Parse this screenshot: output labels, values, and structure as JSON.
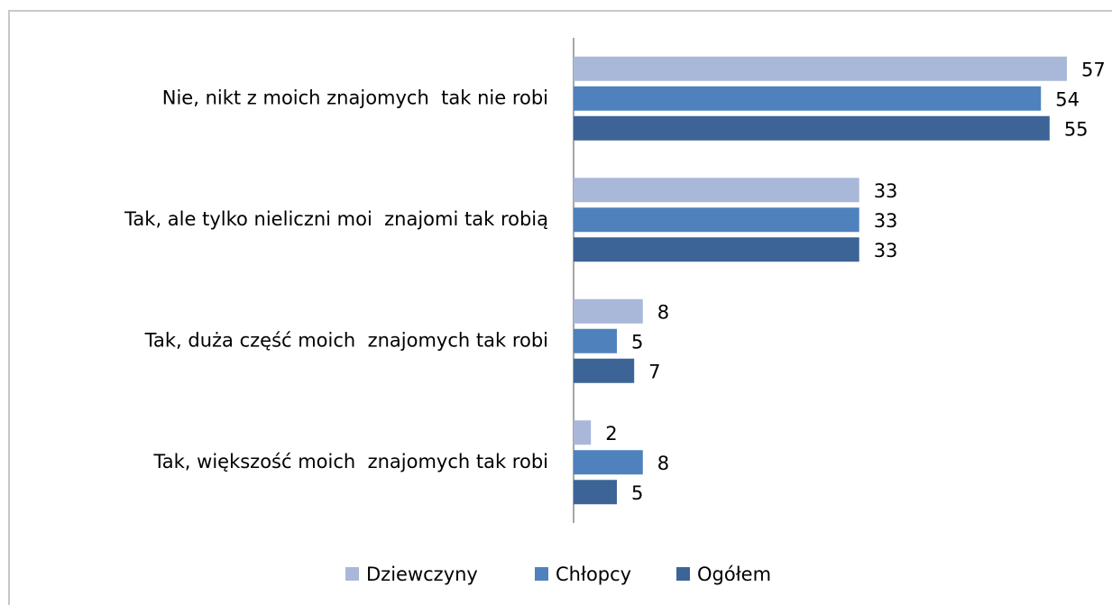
{
  "chart_data": {
    "type": "bar",
    "orientation": "horizontal",
    "categories": [
      "Nie, nikt z moich znajomych  tak nie robi",
      "Tak, ale tylko nieliczni moi  znajomi tak robią",
      "Tak, duża część moich  znajomych tak robi",
      "Tak, większość moich  znajomych tak robi"
    ],
    "series": [
      {
        "name": "Dziewczyny",
        "color": "#a9b8d9",
        "values": [
          57,
          33,
          8,
          2
        ]
      },
      {
        "name": "Chłopcy",
        "color": "#4f81bd",
        "values": [
          54,
          33,
          5,
          8
        ]
      },
      {
        "name": "Ogółem",
        "color": "#3d6496",
        "values": [
          55,
          33,
          7,
          5
        ]
      }
    ],
    "xlim": [
      0,
      62
    ],
    "legend": "bottom"
  }
}
